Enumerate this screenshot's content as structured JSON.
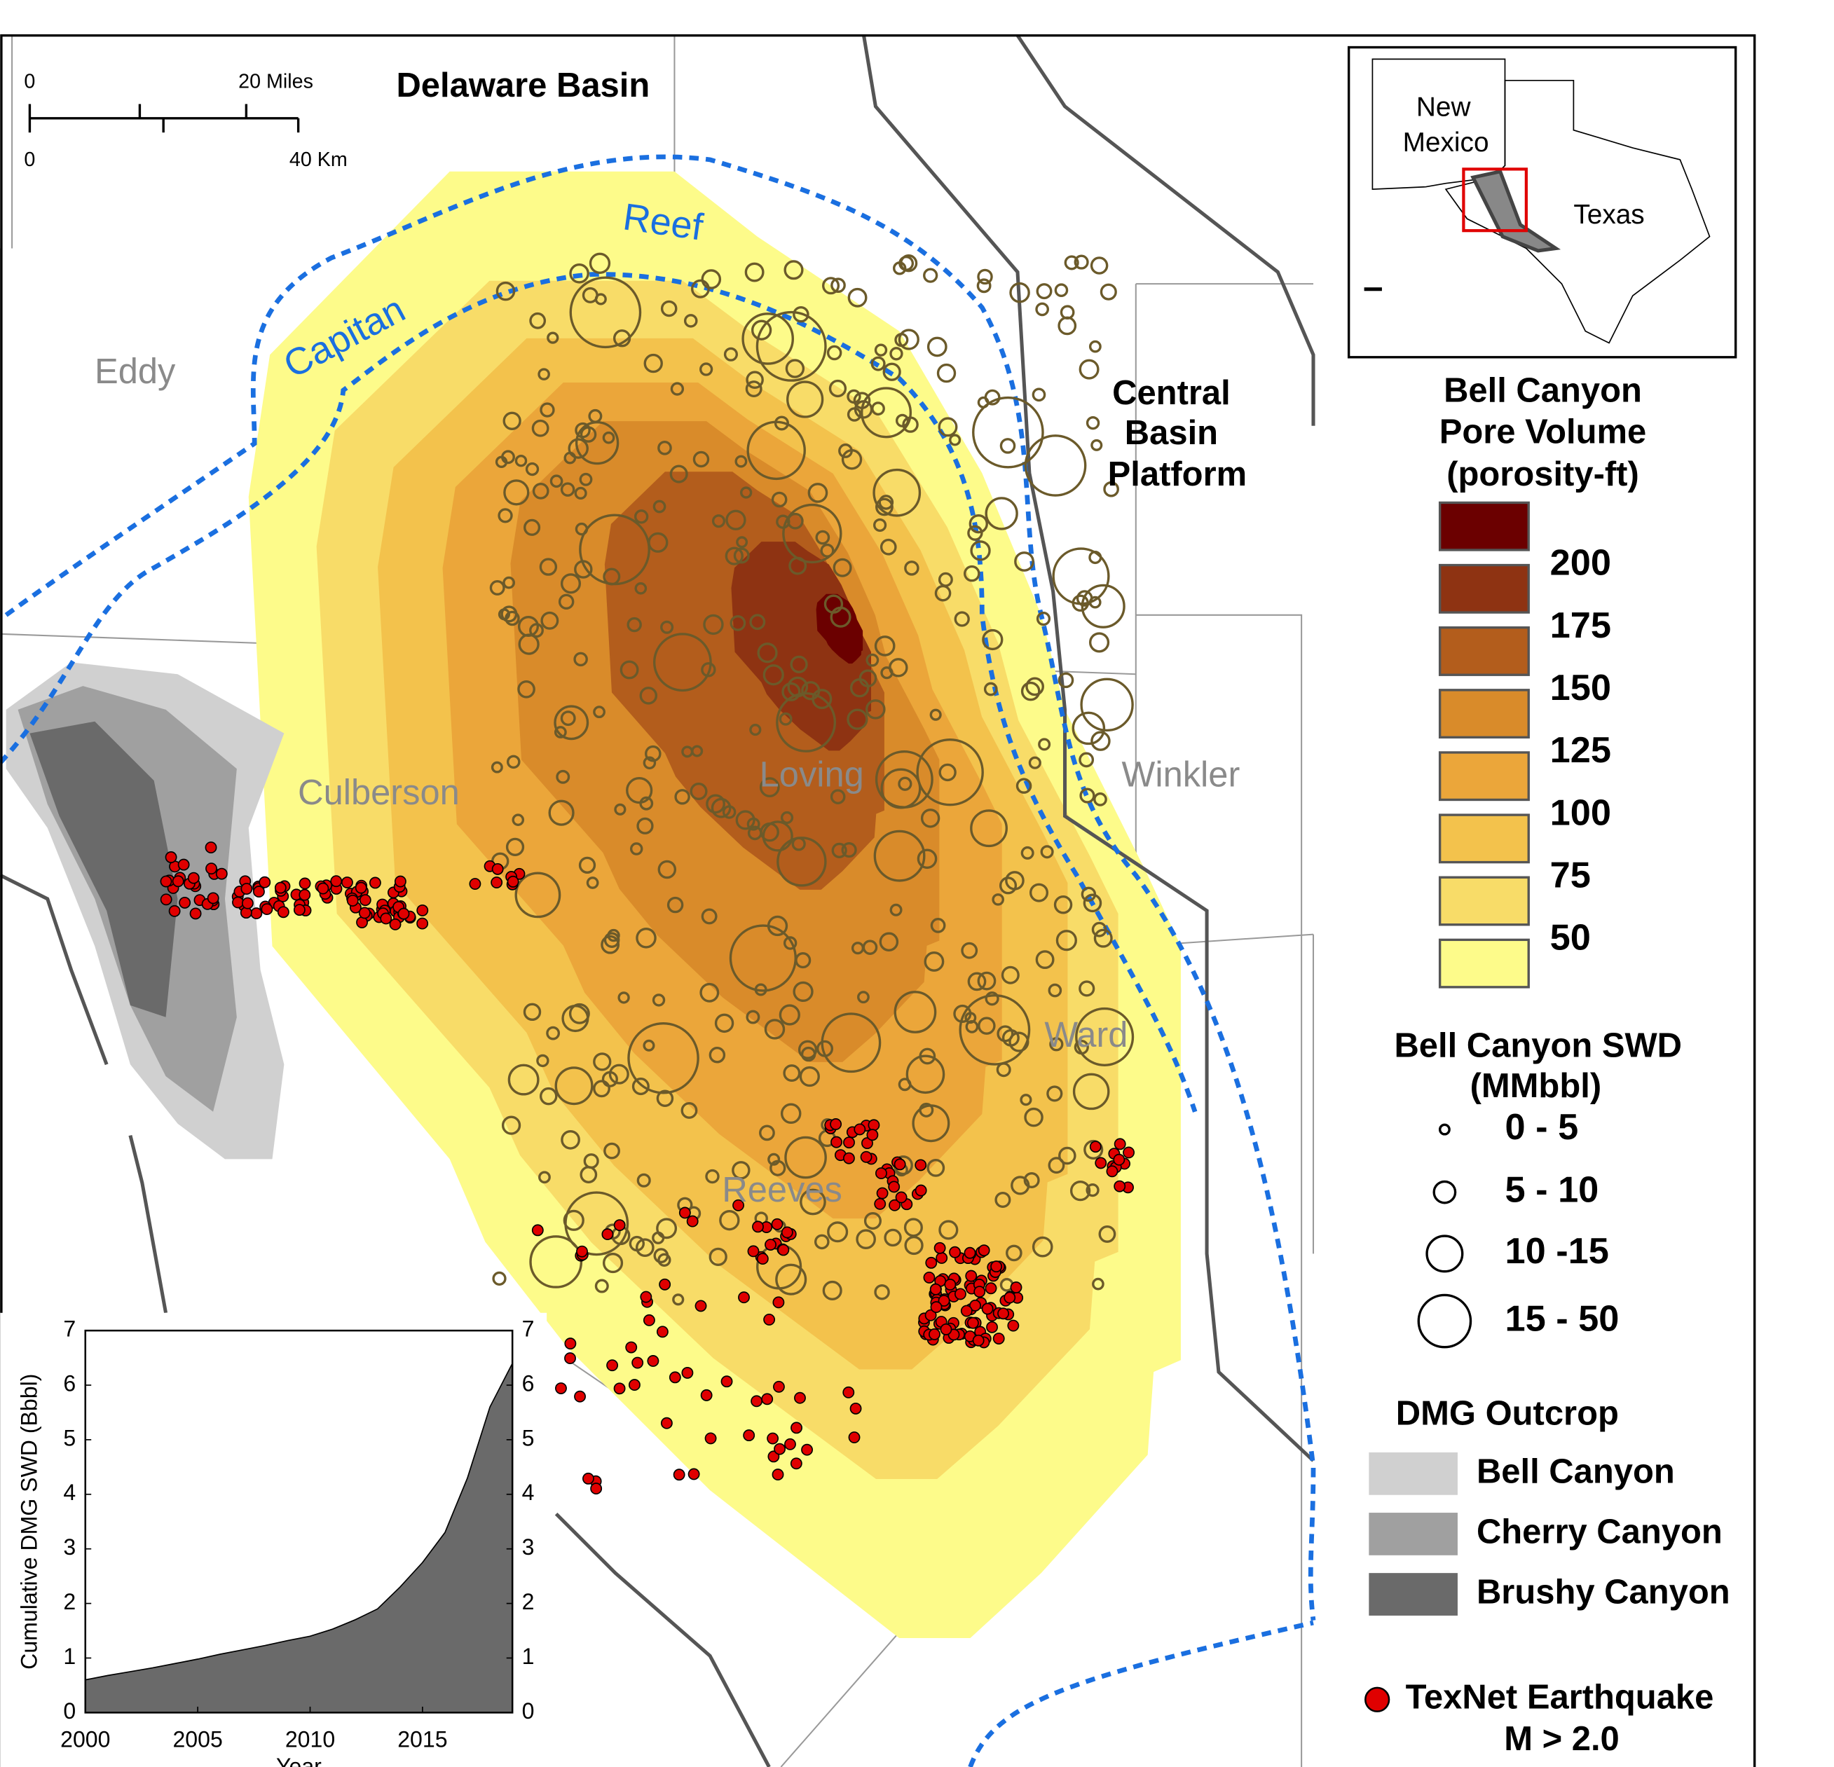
{
  "map": {
    "title": "Delaware Basin",
    "labels": {
      "eddy": "Eddy",
      "culberson": "Culberson",
      "loving": "Loving",
      "winkler": "Winkler",
      "ward": "Ward",
      "reeves": "Reeves",
      "capitan": "Capitan",
      "reef": "Reef",
      "platform": [
        "Central",
        "Basin",
        "Platform"
      ]
    },
    "scale_bar": {
      "miles_zero": "0",
      "miles": "20 Miles",
      "km_zero": "0",
      "km": "40 Km"
    }
  },
  "inset_map": {
    "new_mexico": [
      "New",
      "Mexico"
    ],
    "texas": "Texas"
  },
  "legend": {
    "pore_volume": {
      "title": [
        "Bell Canyon",
        "Pore Volume",
        "(porosity-ft)"
      ],
      "colors": [
        "#6b0000",
        "#8e3312",
        "#b35d1c",
        "#d98b2a",
        "#eba63a",
        "#f3c24c",
        "#f8dc68",
        "#fdfb8a"
      ],
      "ticks": [
        200,
        175,
        150,
        125,
        100,
        75,
        50
      ]
    },
    "swd": {
      "title": [
        "Bell Canyon SWD",
        "(MMbbl)"
      ],
      "classes": [
        "0 - 5",
        "5 - 10",
        "10 -15",
        "15 - 50"
      ]
    },
    "outcrop": {
      "title": "DMG Outcrop",
      "items": [
        {
          "name": "Bell Canyon",
          "color": "#d0d0d0"
        },
        {
          "name": "Cherry Canyon",
          "color": "#a0a0a0"
        },
        {
          "name": "Brushy Canyon",
          "color": "#6a6a6a"
        }
      ]
    },
    "earthquake": {
      "name": [
        "TexNet Earthquake",
        "M > 2.0"
      ],
      "color": "#e00000"
    }
  },
  "chart_data": {
    "type": "area",
    "color": "#6a6a6a",
    "x": [
      2000,
      2001,
      2002,
      2003,
      2004,
      2005,
      2006,
      2007,
      2008,
      2009,
      2010,
      2011,
      2012,
      2013,
      2014,
      2015,
      2016,
      2017,
      2018,
      2019
    ],
    "values": [
      0.6,
      0.68,
      0.75,
      0.82,
      0.9,
      0.98,
      1.07,
      1.15,
      1.23,
      1.32,
      1.4,
      1.53,
      1.7,
      1.9,
      2.3,
      2.75,
      3.3,
      4.3,
      5.6,
      6.4
    ],
    "xlim": [
      2000,
      2019
    ],
    "xticks": [
      2000,
      2005,
      2010,
      2015
    ],
    "ylim": [
      0,
      7
    ],
    "yticks": [
      0,
      1,
      2,
      3,
      4,
      5,
      6,
      7
    ],
    "y2lim": [
      0,
      7
    ],
    "y2ticks": [
      0,
      1,
      2,
      3,
      4,
      5,
      6,
      7
    ],
    "xlabel": "Year",
    "ylabel": "Cumulative DMG SWD (Bbbl)"
  }
}
